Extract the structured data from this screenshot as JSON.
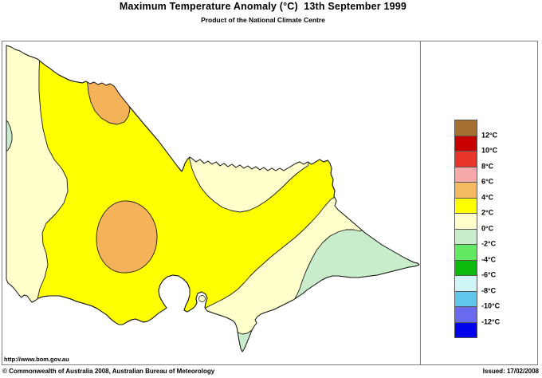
{
  "header": {
    "title": "Maximum Temperature Anomaly (°C)  13th September 1999",
    "subtitle": "Product of the National Climate Centre"
  },
  "legend": {
    "swatch_colors": [
      "#A5702F",
      "#C80000",
      "#E8342A",
      "#F7A8A8",
      "#F5B964",
      "#FFFF00",
      "#FFFFCC",
      "#C9EDCB",
      "#63E863",
      "#0DBB0D",
      "#CFF5F7",
      "#62C6EA",
      "#6A6AEF",
      "#0202EC"
    ],
    "boundary_labels": [
      "12°C",
      "10°C",
      "8°C",
      "6°C",
      "4°C",
      "2°C",
      "0°C",
      "-2°C",
      "-4°C",
      "-6°C",
      "-8°C",
      "-10°C",
      "-12°C"
    ]
  },
  "map": {
    "colors": {
      "anomaly_4_to_6": "#F5B359",
      "anomaly_2_to_4": "#FFFF00",
      "anomaly_0_to_2": "#FFFFCC",
      "anomaly_neg2_to_0": "#C9EDCB",
      "water": "#FFFFFF",
      "outline": "#1A1A1A"
    }
  },
  "footer": {
    "url": "http://www.bom.gov.au",
    "copyright": "© Commonwealth of Australia 2008, Australian Bureau of Meteorology",
    "issued": "Issued: 17/02/2008"
  }
}
